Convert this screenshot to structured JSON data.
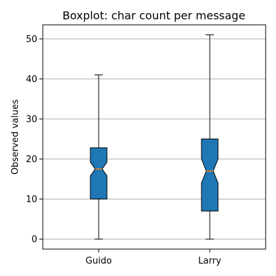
{
  "chart_data": {
    "type": "boxplot",
    "title": "Boxplot: char count per message",
    "xlabel": "",
    "ylabel": "Observed values",
    "categories": [
      "Guido",
      "Larry"
    ],
    "series": [
      {
        "category": "Guido",
        "whisker_low": 0,
        "q1": 10,
        "median": 17.5,
        "notch_low": 15.8,
        "notch_high": 19.2,
        "q3": 22.8,
        "whisker_high": 41
      },
      {
        "category": "Larry",
        "whisker_low": 0,
        "q1": 7,
        "median": 17,
        "notch_low": 14,
        "notch_high": 20,
        "q3": 25,
        "whisker_high": 51
      }
    ],
    "ylim": [
      -2.5,
      53.5
    ],
    "yticks": [
      0,
      10,
      20,
      30,
      40,
      50
    ],
    "notched": true,
    "grid": "y",
    "colors": {
      "box_fill": "#1f77b4",
      "median": "#ff7f0e",
      "grid": "#b0b0b0",
      "stroke": "#000000"
    }
  }
}
